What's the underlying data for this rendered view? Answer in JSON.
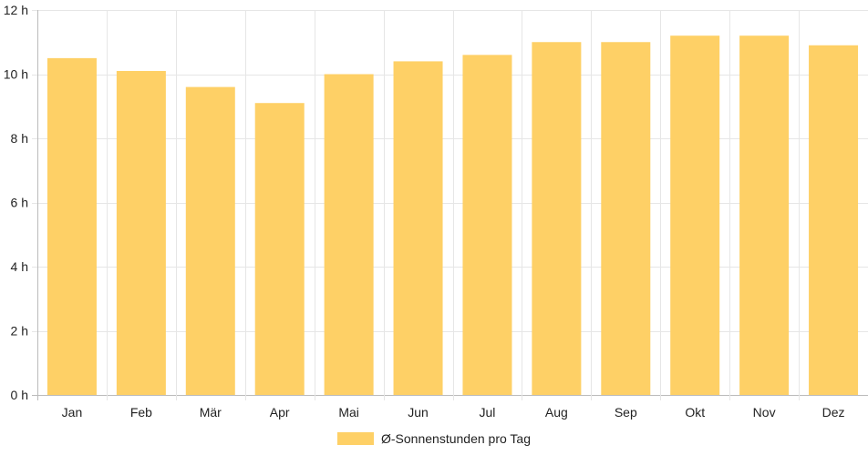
{
  "chart_data": {
    "type": "bar",
    "categories": [
      "Jan",
      "Feb",
      "Mär",
      "Apr",
      "Mai",
      "Jun",
      "Jul",
      "Aug",
      "Sep",
      "Okt",
      "Nov",
      "Dez"
    ],
    "series": [
      {
        "name": "Ø-Sonnenstunden pro Tag",
        "values": [
          10.5,
          10.1,
          9.6,
          9.1,
          10.0,
          10.4,
          10.6,
          11.0,
          11.0,
          11.2,
          11.2,
          10.9
        ],
        "color": "#fed066"
      }
    ],
    "yticks": [
      "0 h",
      "2 h",
      "4 h",
      "6 h",
      "8 h",
      "10 h",
      "12 h"
    ],
    "ylim": [
      0,
      12
    ],
    "ytick_step": 2,
    "grid": true,
    "grid_color": "#e6e6e6",
    "axis_color": "#bbbbbb",
    "legend_placement": "bottom"
  }
}
